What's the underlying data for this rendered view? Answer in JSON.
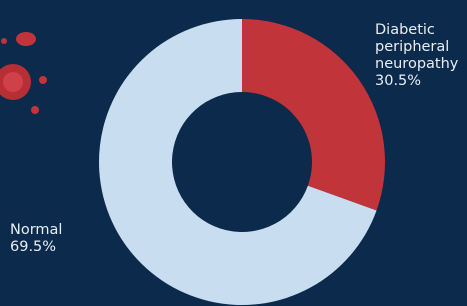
{
  "chart_data": {
    "type": "donut",
    "categories": [
      "Diabetic peripheral neuropathy",
      "Normal"
    ],
    "values": [
      30.5,
      69.5
    ],
    "value_labels": [
      "30.5%",
      "69.5%"
    ],
    "colors": [
      "#c1343a",
      "#c8def0"
    ]
  }
}
